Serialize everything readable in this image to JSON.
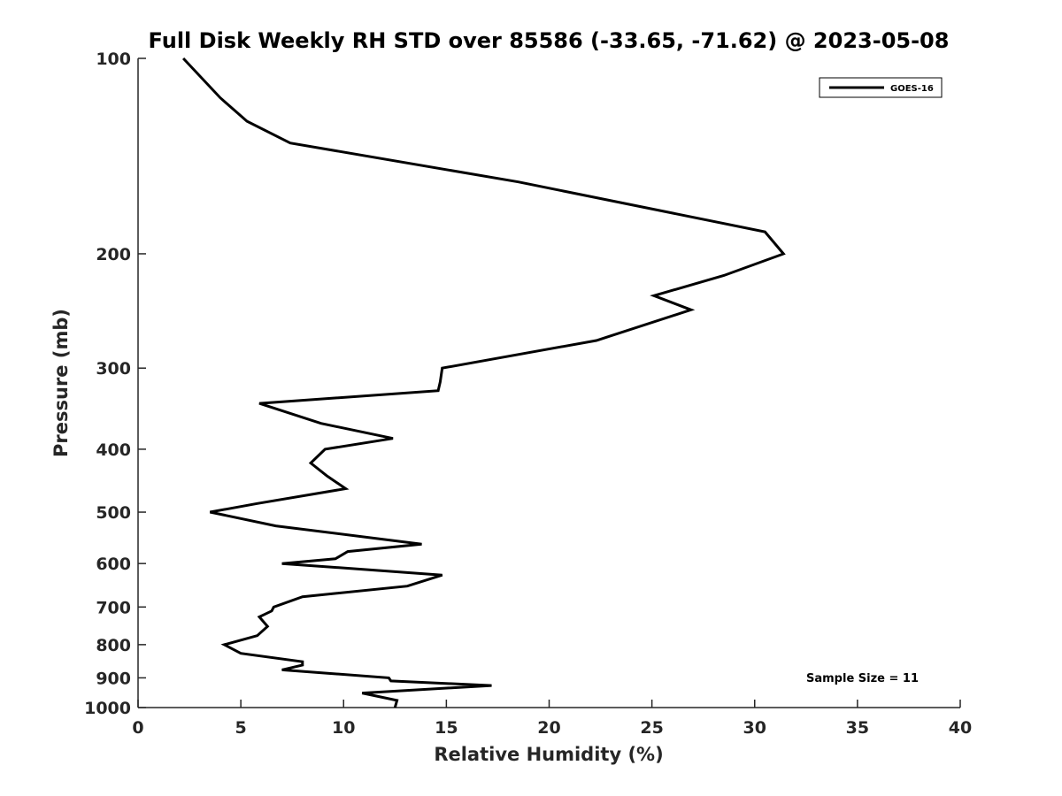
{
  "chart_data": {
    "type": "line",
    "title": "Full Disk Weekly RH STD over 85586 (-33.65, -71.62) @ 2023-05-08",
    "xlabel": "Relative Humidity (%)",
    "ylabel": "Pressure (mb)",
    "xlim": [
      0,
      40
    ],
    "ylim": [
      100,
      1000
    ],
    "y_scale": "log",
    "y_reversed": true,
    "x_ticks": [
      "0",
      "5",
      "10",
      "15",
      "20",
      "25",
      "30",
      "35",
      "40"
    ],
    "y_ticks": [
      "100",
      "200",
      "300",
      "400",
      "500",
      "600",
      "700",
      "800",
      "900",
      "1000"
    ],
    "grid": false,
    "legend_position": "top-right",
    "series": [
      {
        "name": "GOES-16",
        "color": "#000000",
        "x": [
          2.2,
          4.0,
          5.3,
          7.4,
          18.5,
          30.5,
          31.4,
          28.5,
          25.1,
          26.9,
          22.3,
          14.8,
          14.7,
          14.6,
          5.9,
          8.9,
          12.4,
          9.1,
          8.4,
          9.2,
          10.1,
          5.8,
          3.5,
          6.7,
          13.8,
          10.2,
          9.6,
          7.0,
          14.8,
          13.1,
          8.0,
          6.6,
          6.5,
          5.9,
          6.3,
          5.8,
          4.2,
          5.0,
          8.0,
          8.0,
          7.0,
          12.2,
          12.3,
          17.2,
          10.9,
          12.6,
          12.5
        ],
        "y": [
          100,
          115,
          125,
          135,
          155,
          185,
          200,
          216,
          232,
          244,
          272,
          300,
          315,
          325,
          340,
          365,
          385,
          400,
          420,
          440,
          460,
          485,
          500,
          525,
          560,
          575,
          590,
          600,
          625,
          650,
          675,
          700,
          710,
          725,
          750,
          775,
          800,
          825,
          850,
          860,
          875,
          900,
          910,
          925,
          950,
          975,
          1000
        ]
      }
    ],
    "annotations": [
      "Sample Size = 11"
    ]
  }
}
